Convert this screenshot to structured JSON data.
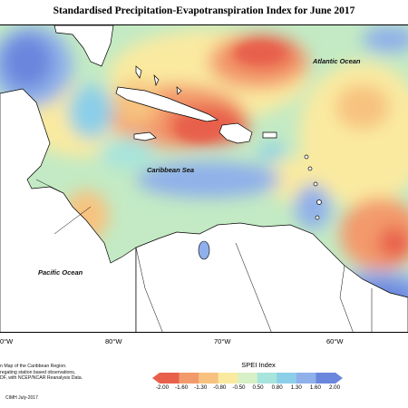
{
  "title": "Standardised Precipitation-Evapotranspiration Index for June 2017",
  "places": {
    "atlantic": "Atlantic Ocean",
    "caribbean": "Caribbean Sea",
    "pacific": "Pacific Ocean"
  },
  "longitude_labels": [
    "0°W",
    "80°W",
    "70°W",
    "60°W"
  ],
  "notes": [
    "n Map of the Caribbean Region.",
    "regating station based observations,",
    "DF, with NCEP/NCAR Reanalysis Data."
  ],
  "credit": "CIMH July-2017",
  "legend": {
    "title": "SPEI Index",
    "ticks": [
      "-2.00",
      "-1.60",
      "-1.30",
      "-0.80",
      "-0.50",
      "0.50",
      "0.80",
      "1.30",
      "1.60",
      "2.00"
    ],
    "colors": [
      "#e8604c",
      "#f39a6c",
      "#f7c27f",
      "#faeaa0",
      "#d7f0c5",
      "#a7e4dc",
      "#8bcfe8",
      "#8fb0ea",
      "#6b86dd"
    ]
  },
  "colors": {
    "land": "#ffffff",
    "sea_base": "#c3eac4",
    "strong_dry": "#e8604c",
    "dry": "#f7c27f",
    "wet": "#8fb0ea",
    "strong_wet": "#6b86dd"
  }
}
